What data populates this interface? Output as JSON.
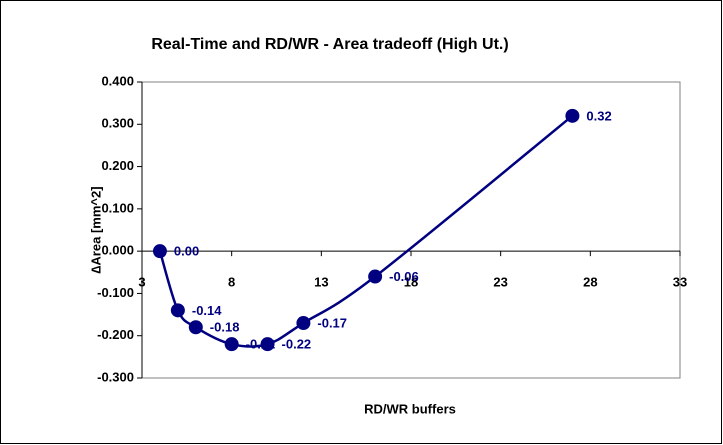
{
  "chart_data": {
    "type": "line",
    "title": "Real-Time and RD/WR -  Area tradeoff (High Ut.)",
    "x_label": "RD/WR buffers",
    "y_label": "∆Area [mm^2]",
    "x": [
      4,
      5,
      6,
      8,
      10,
      12,
      16,
      27
    ],
    "series": [
      {
        "name": "Area",
        "color": "#000080",
        "values": [
          0.0,
          -0.14,
          -0.18,
          -0.22,
          -0.22,
          -0.17,
          -0.06,
          0.32
        ],
        "value_labels": [
          "0.00",
          "-0.14",
          "-0.18",
          "-0.22",
          "-0.22",
          "-0.17",
          "-0.06",
          "0.32"
        ]
      }
    ],
    "xlim": [
      3,
      33
    ],
    "xticks": [
      3,
      8,
      13,
      18,
      23,
      28,
      33
    ],
    "ylim": [
      -0.3,
      0.4
    ],
    "yticks": [
      {
        "value": -0.3,
        "label": "-0.300"
      },
      {
        "value": -0.2,
        "label": "-0.200"
      },
      {
        "value": -0.1,
        "label": "-0.100"
      },
      {
        "value": 0,
        "label": "0.000"
      },
      {
        "value": 0.1,
        "label": "0.100"
      },
      {
        "value": 0.2,
        "label": "0.200"
      },
      {
        "value": 0.3,
        "label": "0.300"
      },
      {
        "value": 0.4,
        "label": "0.400"
      }
    ],
    "smooth": true
  }
}
